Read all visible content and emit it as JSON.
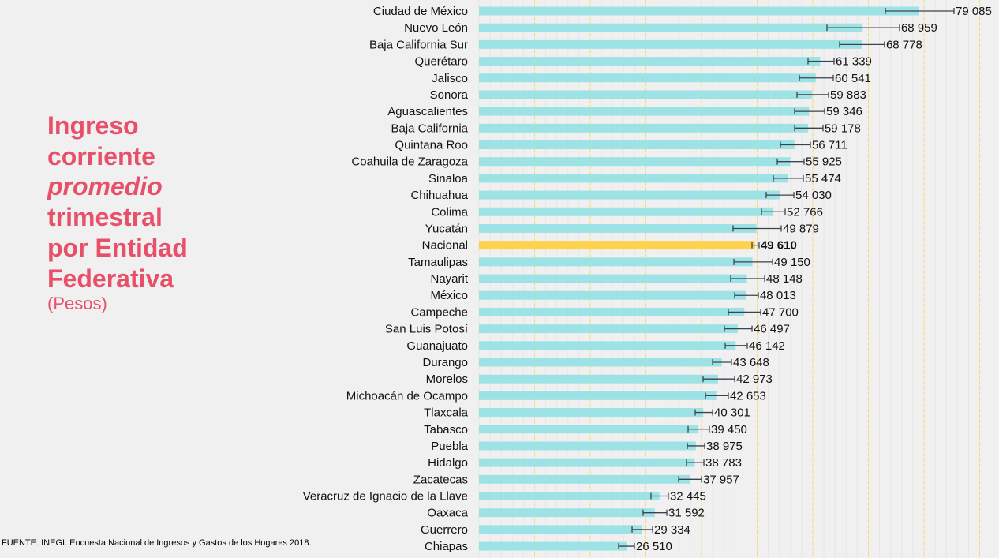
{
  "title": {
    "line1": "Ingreso",
    "line2": "corriente",
    "line3": "promedio",
    "line4": "trimestral",
    "line5": "por Entidad",
    "line6": "Federativa",
    "units": "(Pesos)"
  },
  "source": "FUENTE: INEGI. Encuesta Nacional de Ingresos y Gastos de los Hogares 2018.",
  "colors": {
    "bar": "#9de3e5",
    "highlight": "#ffd24d",
    "title": "#e8506a",
    "grid": "#ffd966",
    "errorbar": "#3b4350"
  },
  "chart_data": {
    "type": "bar",
    "orientation": "horizontal",
    "xlim": [
      0,
      90000
    ],
    "grid": true,
    "grid_step": 10000,
    "highlight": "Nacional",
    "categories": [
      "Ciudad de México",
      "Nuevo León",
      "Baja California Sur",
      "Querétaro",
      "Jalisco",
      "Sonora",
      "Aguascalientes",
      "Baja California",
      "Quintana Roo",
      "Coahuila de Zaragoza",
      "Sinaloa",
      "Chihuahua",
      "Colima",
      "Yucatán",
      "Nacional",
      "Tamaulipas",
      "Nayarit",
      "México",
      "Campeche",
      "San Luis Potosí",
      "Guanajuato",
      "Durango",
      "Morelos",
      "Michoacán de Ocampo",
      "Tlaxcala",
      "Tabasco",
      "Puebla",
      "Hidalgo",
      "Zacatecas",
      "Veracruz de Ignacio de la Llave",
      "Oaxaca",
      "Guerrero",
      "Chiapas"
    ],
    "values": [
      79085,
      68959,
      68778,
      61339,
      60541,
      59883,
      59346,
      59178,
      56711,
      55925,
      55474,
      54030,
      52766,
      49879,
      49610,
      49150,
      48148,
      48013,
      47700,
      46497,
      46142,
      43648,
      42973,
      42653,
      40301,
      39450,
      38975,
      38783,
      37957,
      32445,
      31592,
      29334,
      26510
    ],
    "labels": [
      "79 085",
      "68 959",
      "68 778",
      "61 339",
      "60 541",
      "59 883",
      "59 346",
      "59 178",
      "56 711",
      "55 925",
      "55 474",
      "54 030",
      "52 766",
      "49 879",
      "49 610",
      "49 150",
      "48 148",
      "48 013",
      "47 700",
      "46 497",
      "46 142",
      "43 648",
      "42 973",
      "42 653",
      "40 301",
      "39 450",
      "38 975",
      "38 783",
      "37 957",
      "32 445",
      "31 592",
      "29 334",
      "26 510"
    ],
    "error_low": [
      73050,
      62550,
      64820,
      59150,
      57590,
      57160,
      56740,
      56740,
      54180,
      53620,
      52910,
      51630,
      50780,
      45670,
      49080,
      45820,
      45250,
      45960,
      44820,
      44110,
      44260,
      41990,
      40280,
      40710,
      38870,
      37590,
      37450,
      37300,
      35890,
      30920,
      29500,
      27520,
      25110
    ],
    "error_high": [
      85390,
      75600,
      72900,
      63830,
      63690,
      62840,
      62130,
      61840,
      59570,
      58440,
      58300,
      56600,
      55040,
      54330,
      50350,
      52770,
      51350,
      50210,
      50640,
      49080,
      48230,
      45390,
      45960,
      44820,
      41990,
      41420,
      40570,
      40430,
      40000,
      34040,
      33760,
      31210,
      27940
    ]
  }
}
